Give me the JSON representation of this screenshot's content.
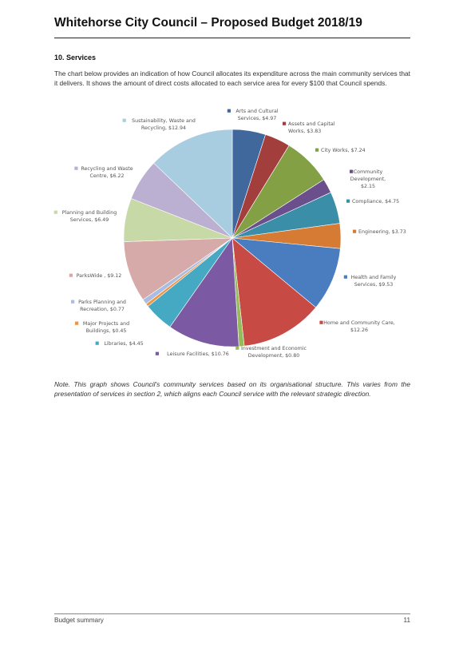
{
  "header": {
    "title": "Whitehorse City Council – Proposed Budget 2018/19"
  },
  "section": {
    "heading": "10.  Services",
    "intro": "The chart below provides an indication of how Council allocates its expenditure across the main community services that it delivers. It shows the amount of direct costs allocated to each service area for every $100 that Council spends."
  },
  "chart_data": {
    "type": "pie",
    "slices": [
      {
        "label": "Arts and Cultural Services, $4.97",
        "value": 4.97,
        "color": "#41689c"
      },
      {
        "label": "Assets and Capital Works, $3.83",
        "value": 3.83,
        "color": "#a23e3c"
      },
      {
        "label": "City Works, $7.24",
        "value": 7.24,
        "color": "#83a045"
      },
      {
        "label": "Community Development, $2.15",
        "value": 2.15,
        "color": "#6a4f8c"
      },
      {
        "label": "Compliance, $4.75",
        "value": 4.75,
        "color": "#3a8ea8"
      },
      {
        "label": "Engineering, $3.73",
        "value": 3.73,
        "color": "#d57b34"
      },
      {
        "label": "Health and Family Services, $9.53",
        "value": 9.53,
        "color": "#4a7dbf"
      },
      {
        "label": "Home and Community Care, $12.26",
        "value": 12.26,
        "color": "#c74a44"
      },
      {
        "label": "Investment and Economic Development, $0.80",
        "value": 0.8,
        "color": "#96bb5a"
      },
      {
        "label": "Leisure Facilities, $10.76",
        "value": 10.76,
        "color": "#7c5aa3"
      },
      {
        "label": "Libraries, $4.45",
        "value": 4.45,
        "color": "#45a9c4"
      },
      {
        "label": "Major Projects and Buildings, $0.45",
        "value": 0.45,
        "color": "#f0943f"
      },
      {
        "label": "Parks Planning and Recreation, $0.77",
        "value": 0.77,
        "color": "#a9bde3"
      },
      {
        "label": "ParksWide , $9.12",
        "value": 9.12,
        "color": "#d6aaa8"
      },
      {
        "label": "Planning and Building Services, $6.49",
        "value": 6.49,
        "color": "#c8d9a8"
      },
      {
        "label": "Recycling and Waste Centre, $6.22",
        "value": 6.22,
        "color": "#bcb0d2"
      },
      {
        "label": "Sustainability, Waste and Recycling, $12.94",
        "value": 12.94,
        "color": "#a9cde0"
      }
    ]
  },
  "note": "Note. This graph shows Council's community services based on its organisational structure. This varies from the presentation of services in section 2, which aligns each Council service with the relevant strategic direction.",
  "footer": {
    "left": "Budget summary",
    "page_number": "11"
  }
}
